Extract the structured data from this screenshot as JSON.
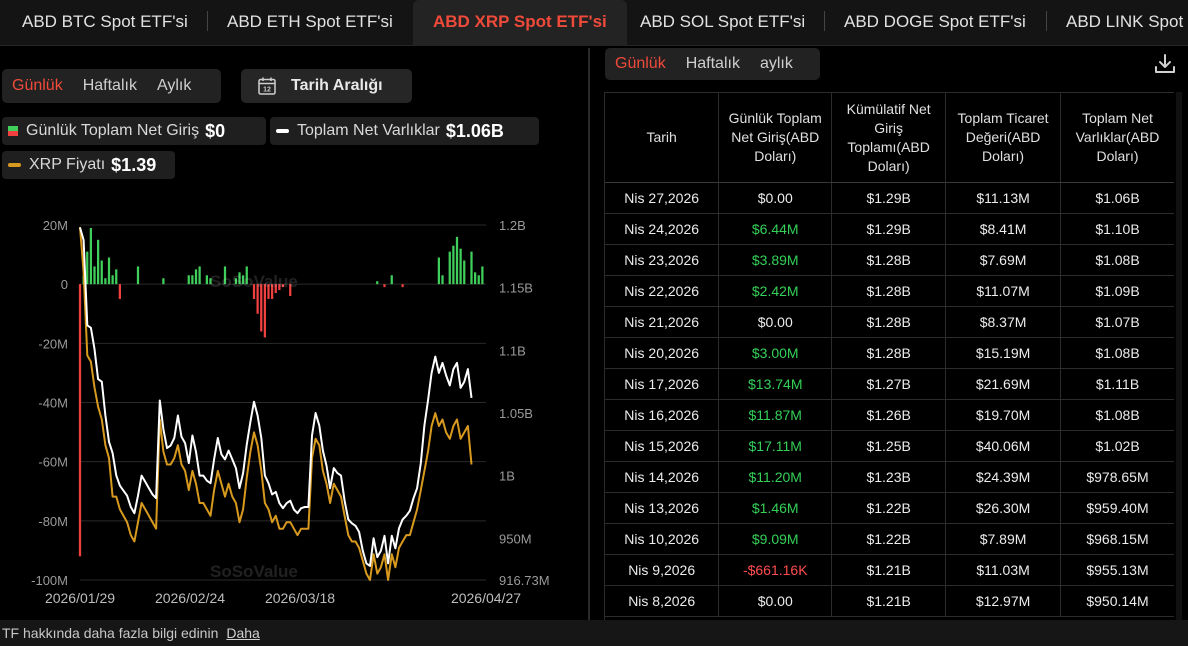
{
  "tabs": [
    {
      "label": "ABD BTC Spot ETF'si",
      "active": false
    },
    {
      "label": "ABD ETH Spot ETF'si",
      "active": false
    },
    {
      "label": "ABD XRP Spot ETF'si",
      "active": true
    },
    {
      "label": "ABD SOL Spot ETF'si",
      "active": false
    },
    {
      "label": "ABD DOGE Spot ETF'si",
      "active": false
    },
    {
      "label": "ABD LINK Spot ETF'si",
      "active": false
    }
  ],
  "chart_controls": {
    "periods": [
      "Günlük",
      "Haftalık",
      "Aylık"
    ],
    "selected_period": "Günlük",
    "date_range_label": "Tarih Aralığı"
  },
  "legend": {
    "net_inflow_label": "Günlük Toplam Net Giriş",
    "net_inflow_value": "$0",
    "net_assets_label": "Toplam Net Varlıklar",
    "net_assets_value": "$1.06B",
    "price_label": "XRP Fiyatı",
    "price_value": "$1.39"
  },
  "watermark": "SoSoValue",
  "colors": {
    "accent": "#f04a3a",
    "inflow_positive": "#3fcf5a",
    "inflow_negative": "#f04040",
    "net_assets_line": "#ffffff",
    "price_line": "#d89a1e"
  },
  "chart_data": {
    "type": "bar+line",
    "x_tick_labels": [
      "2026/01/29",
      "2026/02/24",
      "2026/03/18",
      "2026/04/27"
    ],
    "left_axis": {
      "ticks": [
        "20M",
        "0",
        "-20M",
        "-40M",
        "-60M",
        "-80M",
        "-100M"
      ],
      "range": [
        -100,
        20
      ],
      "unit": "M"
    },
    "right_axis": {
      "ticks": [
        "1.2B",
        "1.15B",
        "1.1B",
        "1.05B",
        "1B",
        "950M",
        "916.73M"
      ],
      "range": [
        916.73,
        1200
      ],
      "unit": "M"
    },
    "series": [
      {
        "name": "Günlük Toplam Net Giriş",
        "kind": "bar",
        "values": [
          -92,
          3,
          11,
          19,
          6,
          15,
          8,
          2,
          9,
          3,
          5,
          -5,
          0,
          0,
          0,
          0,
          6,
          0,
          0,
          0,
          0,
          0,
          0,
          2,
          0,
          0,
          0,
          0,
          0,
          0,
          3,
          3,
          5,
          6,
          0,
          3,
          2,
          0,
          0,
          0,
          6,
          0,
          0,
          2,
          4,
          3,
          6,
          0,
          -5,
          -10,
          -16,
          -18,
          -5,
          -5,
          -3,
          -2,
          -1,
          0,
          -4,
          0,
          0,
          0,
          0,
          0,
          0,
          0,
          0,
          0,
          0,
          0,
          0,
          0,
          0,
          0,
          0,
          0,
          0,
          0,
          0,
          0,
          0,
          0,
          1,
          0,
          -1,
          0,
          3,
          0,
          0,
          -1,
          0,
          0,
          0,
          0,
          0,
          0,
          0,
          0,
          0,
          9,
          3,
          0,
          11,
          13,
          16,
          12,
          8,
          0,
          11,
          4,
          3,
          6,
          0
        ]
      },
      {
        "name": "Toplam Net Varlıklar",
        "kind": "line",
        "axis": "right",
        "values": [
          1198,
          1188,
          1120,
          1118,
          1101,
          1077,
          1075,
          1048,
          1027,
          1018,
          1000,
          992,
          988,
          984,
          975,
          970,
          984,
          1000,
          995,
          990,
          985,
          982,
          1060,
          1037,
          1022,
          1024,
          1030,
          1048,
          1031,
          1026,
          1010,
          1032,
          1019,
          1000,
          1000,
          996,
          994,
          1013,
          1030,
          1017,
          1013,
          1020,
          1013,
          1006,
          990,
          1002,
          1025,
          1043,
          1059,
          1048,
          1030,
          1000,
          994,
          985,
          987,
          978,
          974,
          978,
          980,
          973,
          970,
          974,
          975,
          975,
          1032,
          1050,
          1040,
          1020,
          1008,
          990,
          1006,
          1002,
          1000,
          980,
          965,
          962,
          960,
          955,
          940,
          930,
          928,
          950,
          935,
          940,
          952,
          930,
          952,
          942,
          958,
          965,
          968,
          972,
          982,
          990,
          1010,
          1040,
          1060,
          1082,
          1095,
          1082,
          1090,
          1080,
          1072,
          1085,
          1090,
          1070,
          1075,
          1085,
          1062
        ]
      },
      {
        "name": "XRP Fiyatı",
        "kind": "line",
        "axis": "right",
        "unit": "USD",
        "values": [
          1.92,
          1.85,
          1.72,
          1.71,
          1.67,
          1.64,
          1.62,
          1.58,
          1.56,
          1.5,
          1.5,
          1.48,
          1.47,
          1.46,
          1.44,
          1.43,
          1.46,
          1.49,
          1.48,
          1.47,
          1.46,
          1.45,
          1.62,
          1.57,
          1.55,
          1.55,
          1.56,
          1.58,
          1.55,
          1.54,
          1.51,
          1.54,
          1.52,
          1.49,
          1.49,
          1.48,
          1.47,
          1.51,
          1.54,
          1.52,
          1.5,
          1.52,
          1.5,
          1.49,
          1.46,
          1.48,
          1.53,
          1.57,
          1.6,
          1.58,
          1.54,
          1.49,
          1.48,
          1.46,
          1.47,
          1.45,
          1.45,
          1.46,
          1.46,
          1.45,
          1.44,
          1.45,
          1.45,
          1.45,
          1.56,
          1.59,
          1.58,
          1.54,
          1.52,
          1.49,
          1.52,
          1.51,
          1.5,
          1.47,
          1.44,
          1.43,
          1.43,
          1.42,
          1.4,
          1.38,
          1.37,
          1.41,
          1.38,
          1.39,
          1.41,
          1.37,
          1.41,
          1.39,
          1.42,
          1.43,
          1.44,
          1.44,
          1.46,
          1.48,
          1.51,
          1.54,
          1.57,
          1.61,
          1.63,
          1.61,
          1.62,
          1.6,
          1.59,
          1.61,
          1.62,
          1.59,
          1.6,
          1.61,
          1.55
        ]
      }
    ]
  },
  "table": {
    "period_tabs": [
      "Günlük",
      "Haftalık",
      "aylık"
    ],
    "selected": "Günlük",
    "columns": [
      "Tarih",
      "Günlük Toplam Net Giriş(ABD Doları)",
      "Kümülatif Net Giriş Toplamı(ABD Doları)",
      "Toplam Ticaret Değeri(ABD Doları)",
      "Toplam Net Varlıklar(ABD Doları)"
    ],
    "rows": [
      {
        "date": "Nis 27,2026",
        "inflow": "$0.00",
        "sign": "zero",
        "cumulative": "$1.29B",
        "value": "$11.13M",
        "assets": "$1.06B"
      },
      {
        "date": "Nis 24,2026",
        "inflow": "$6.44M",
        "sign": "pos",
        "cumulative": "$1.29B",
        "value": "$8.41M",
        "assets": "$1.10B"
      },
      {
        "date": "Nis 23,2026",
        "inflow": "$3.89M",
        "sign": "pos",
        "cumulative": "$1.28B",
        "value": "$7.69M",
        "assets": "$1.08B"
      },
      {
        "date": "Nis 22,2026",
        "inflow": "$2.42M",
        "sign": "pos",
        "cumulative": "$1.28B",
        "value": "$11.07M",
        "assets": "$1.09B"
      },
      {
        "date": "Nis 21,2026",
        "inflow": "$0.00",
        "sign": "zero",
        "cumulative": "$1.28B",
        "value": "$8.37M",
        "assets": "$1.07B"
      },
      {
        "date": "Nis 20,2026",
        "inflow": "$3.00M",
        "sign": "pos",
        "cumulative": "$1.28B",
        "value": "$15.19M",
        "assets": "$1.08B"
      },
      {
        "date": "Nis 17,2026",
        "inflow": "$13.74M",
        "sign": "pos",
        "cumulative": "$1.27B",
        "value": "$21.69M",
        "assets": "$1.11B"
      },
      {
        "date": "Nis 16,2026",
        "inflow": "$11.87M",
        "sign": "pos",
        "cumulative": "$1.26B",
        "value": "$19.70M",
        "assets": "$1.08B"
      },
      {
        "date": "Nis 15,2026",
        "inflow": "$17.11M",
        "sign": "pos",
        "cumulative": "$1.25B",
        "value": "$40.06M",
        "assets": "$1.02B"
      },
      {
        "date": "Nis 14,2026",
        "inflow": "$11.20M",
        "sign": "pos",
        "cumulative": "$1.23B",
        "value": "$24.39M",
        "assets": "$978.65M"
      },
      {
        "date": "Nis 13,2026",
        "inflow": "$1.46M",
        "sign": "pos",
        "cumulative": "$1.22B",
        "value": "$26.30M",
        "assets": "$959.40M"
      },
      {
        "date": "Nis 10,2026",
        "inflow": "$9.09M",
        "sign": "pos",
        "cumulative": "$1.22B",
        "value": "$7.89M",
        "assets": "$968.15M"
      },
      {
        "date": "Nis 9,2026",
        "inflow": "-$661.16K",
        "sign": "neg",
        "cumulative": "$1.21B",
        "value": "$11.03M",
        "assets": "$955.13M"
      },
      {
        "date": "Nis 8,2026",
        "inflow": "$0.00",
        "sign": "zero",
        "cumulative": "$1.21B",
        "value": "$12.97M",
        "assets": "$950.14M"
      }
    ]
  },
  "footer": {
    "text": "TF hakkında daha fazla bilgi edinin",
    "link": "Daha"
  }
}
